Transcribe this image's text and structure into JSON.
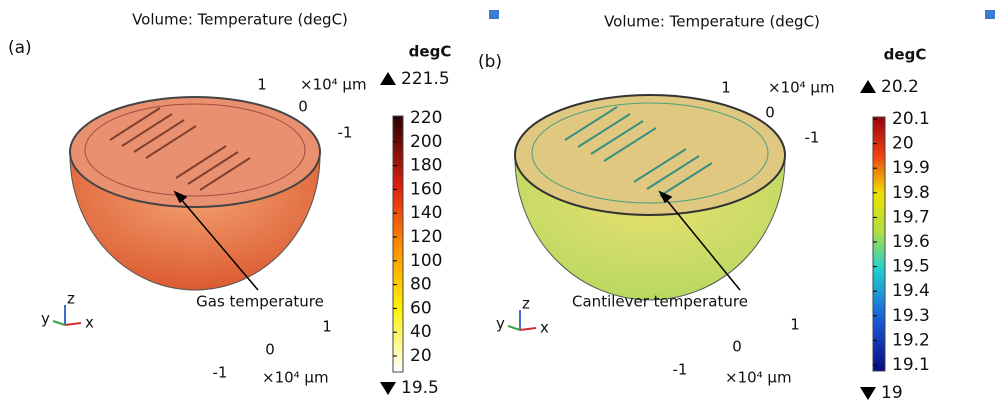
{
  "panels": [
    {
      "label": "(a)",
      "title": "Volume: Temperature (degC)",
      "colorbar": {
        "unit": "degC",
        "max": 221.5,
        "min": 19.5,
        "ticks": [
          220,
          200,
          180,
          160,
          140,
          120,
          100,
          80,
          60,
          40,
          20
        ]
      },
      "axes": {
        "top": {
          "ticks": [
            1,
            0,
            -1
          ],
          "unit": "×10⁴ μm"
        },
        "bottom": {
          "ticks": [
            1,
            0,
            -1
          ],
          "unit": "×10⁴ μm"
        }
      },
      "triad": [
        "z",
        "y",
        "x"
      ],
      "annotation": "Gas temperature"
    },
    {
      "label": "(b)",
      "title": "Volume: Temperature (degC)",
      "colorbar": {
        "unit": "degC",
        "max": 20.2,
        "min": 19,
        "ticks": [
          20.1,
          20,
          19.9,
          19.8,
          19.7,
          19.6,
          19.5,
          19.4,
          19.3,
          19.2,
          19.1
        ]
      },
      "axes": {
        "top": {
          "ticks": [
            1,
            0,
            -1
          ],
          "unit": "×10⁴ μm"
        },
        "bottom": {
          "ticks": [
            1,
            0,
            -1
          ],
          "unit": "×10⁴ μm"
        }
      },
      "triad": [
        "z",
        "y",
        "x"
      ],
      "annotation": "Cantilever temperature"
    }
  ]
}
